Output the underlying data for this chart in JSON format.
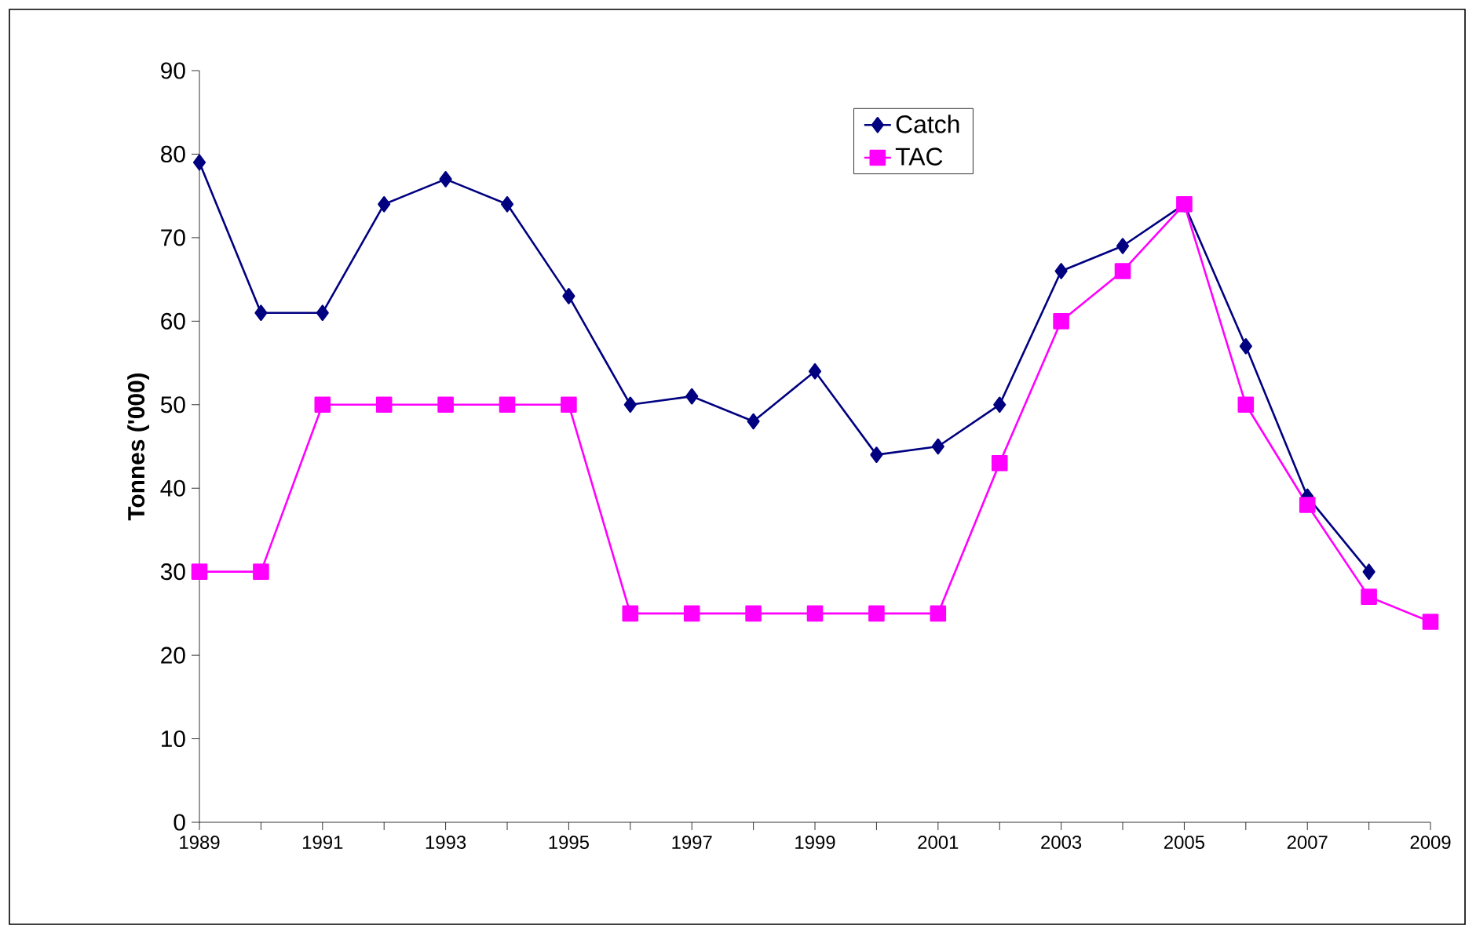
{
  "chart_data": {
    "type": "line",
    "ylabel": "Tonnes ('000)",
    "x": [
      1989,
      1990,
      1991,
      1992,
      1993,
      1994,
      1995,
      1996,
      1997,
      1998,
      1999,
      2000,
      2001,
      2002,
      2003,
      2004,
      2005,
      2006,
      2007,
      2008,
      2009
    ],
    "series": [
      {
        "name": "Catch",
        "color": "#000080",
        "marker": "diamond",
        "values": [
          79,
          61,
          61,
          74,
          77,
          74,
          63,
          50,
          51,
          48,
          54,
          44,
          45,
          50,
          66,
          69,
          74,
          57,
          39,
          30,
          null
        ]
      },
      {
        "name": "TAC",
        "color": "#ff00ff",
        "marker": "square",
        "values": [
          30,
          30,
          50,
          50,
          50,
          50,
          50,
          25,
          25,
          25,
          25,
          25,
          25,
          43,
          60,
          66,
          74,
          50,
          38,
          27,
          24
        ]
      }
    ],
    "xlim": [
      1989,
      2009
    ],
    "xticks": [
      1989,
      {
        "value": 1990,
        "label": null
      },
      1991,
      {
        "value": 1992,
        "label": null
      },
      1993,
      {
        "value": 1994,
        "label": null
      },
      1995,
      {
        "value": 1996,
        "label": null
      },
      1997,
      {
        "value": 1998,
        "label": null
      },
      1999,
      {
        "value": 2000,
        "label": null
      },
      2001,
      {
        "value": 2002,
        "label": null
      },
      2003,
      {
        "value": 2004,
        "label": null
      },
      2005,
      {
        "value": 2006,
        "label": null
      },
      2007,
      {
        "value": 2008,
        "label": null
      },
      2009
    ],
    "ylim": [
      0,
      90
    ],
    "yticks": [
      0,
      10,
      20,
      30,
      40,
      50,
      60,
      70,
      80,
      90
    ],
    "grid": false,
    "legend": "top",
    "line_style": "solid"
  }
}
